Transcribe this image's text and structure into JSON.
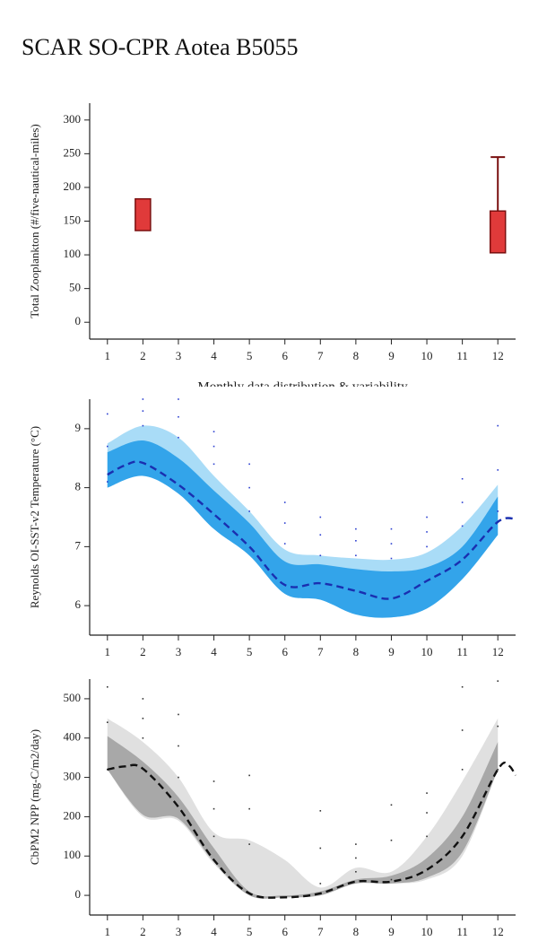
{
  "title": "SCAR SO-CPR Aotea B5055",
  "chart_data": [
    {
      "type": "box",
      "ylabel": "Total Zooplankton (#/five-nautical-miles)",
      "xlabel": "Monthly data distribution & variability",
      "xlim": [
        0.5,
        12.5
      ],
      "xticks": [
        1,
        2,
        3,
        4,
        5,
        6,
        7,
        8,
        9,
        10,
        11,
        12
      ],
      "ylim": [
        -25,
        325
      ],
      "yticks": [
        0,
        50,
        100,
        150,
        200,
        250,
        300
      ],
      "fill": "#e03a3a",
      "stroke": "#7a1010",
      "boxes": [
        {
          "x": 2,
          "q1": 136,
          "q3": 183
        },
        {
          "x": 12,
          "q1": 103,
          "q3": 165,
          "whisker_high": 245
        }
      ]
    },
    {
      "type": "line",
      "ylabel": "Reynolds OI-SST-v2 Temperature (°C)",
      "xlim": [
        0.5,
        12.5
      ],
      "xticks": [
        1,
        2,
        3,
        4,
        5,
        6,
        7,
        8,
        9,
        10,
        11,
        12
      ],
      "ylim": [
        5.5,
        9.5
      ],
      "yticks": [
        6,
        7,
        8,
        9
      ],
      "bands": [
        {
          "color": "#a9dcf7",
          "x": [
            1,
            2,
            3,
            4,
            5,
            6,
            7,
            8,
            9,
            10,
            11,
            12
          ],
          "upper": [
            8.75,
            9.05,
            8.85,
            8.2,
            7.6,
            6.95,
            6.85,
            6.8,
            6.78,
            6.9,
            7.35,
            8.05
          ],
          "lower": [
            8.0,
            8.2,
            7.9,
            7.3,
            6.85,
            6.2,
            6.1,
            5.85,
            5.8,
            5.95,
            6.45,
            7.2
          ]
        },
        {
          "color": "#33a4ea",
          "x": [
            1,
            2,
            3,
            4,
            5,
            6,
            7,
            8,
            9,
            10,
            11,
            12
          ],
          "upper": [
            8.6,
            8.8,
            8.5,
            7.95,
            7.4,
            6.75,
            6.7,
            6.62,
            6.58,
            6.65,
            7.0,
            7.85
          ],
          "lower": [
            8.0,
            8.2,
            7.9,
            7.3,
            6.85,
            6.2,
            6.1,
            5.85,
            5.8,
            5.95,
            6.45,
            7.2
          ]
        }
      ],
      "points": {
        "color": "#2b3fd0",
        "x": [
          1,
          1,
          1,
          2,
          2,
          2,
          3,
          3,
          3,
          4,
          4,
          4,
          5,
          5,
          5,
          6,
          6,
          6,
          7,
          7,
          7,
          8,
          8,
          8,
          9,
          9,
          9,
          10,
          10,
          10,
          11,
          11,
          11,
          12,
          12,
          12
        ],
        "y": [
          8.1,
          8.7,
          9.25,
          9.05,
          9.3,
          9.5,
          8.85,
          9.2,
          9.5,
          8.4,
          8.7,
          8.95,
          7.6,
          8.0,
          8.4,
          7.05,
          7.4,
          7.75,
          6.85,
          7.2,
          7.5,
          6.85,
          7.1,
          7.3,
          6.8,
          7.05,
          7.3,
          7.0,
          7.25,
          7.5,
          7.35,
          7.75,
          8.15,
          7.6,
          8.3,
          9.05
        ]
      },
      "series": [
        {
          "color": "#1a2fb0",
          "dashed": true,
          "x": [
            1,
            1.5,
            2,
            3,
            4,
            5,
            6,
            7,
            8,
            9,
            10,
            11,
            12,
            12.5
          ],
          "values": [
            8.22,
            8.38,
            8.42,
            8.05,
            7.55,
            7.0,
            6.35,
            6.38,
            6.25,
            6.12,
            6.42,
            6.78,
            7.42,
            7.47
          ]
        }
      ]
    },
    {
      "type": "line",
      "ylabel": "CbPM2 NPP (mg-C/m2/day)",
      "xlim": [
        0.5,
        12.5
      ],
      "xticks": [
        1,
        2,
        3,
        4,
        5,
        6,
        7,
        8,
        9,
        10,
        11,
        12
      ],
      "ylim": [
        -50,
        550
      ],
      "yticks": [
        0,
        100,
        200,
        300,
        400,
        500
      ],
      "bands": [
        {
          "color": "#e0e0e0",
          "x": [
            1,
            2,
            3,
            4,
            5,
            6,
            7,
            8,
            9,
            10,
            11,
            12
          ],
          "upper": [
            450,
            390,
            300,
            160,
            140,
            90,
            20,
            70,
            60,
            150,
            290,
            450
          ],
          "lower": [
            320,
            200,
            190,
            80,
            0,
            -5,
            0,
            30,
            30,
            40,
            100,
            320
          ]
        },
        {
          "color": "#a8a8a8",
          "x": [
            1,
            2,
            3,
            4,
            5,
            6,
            7,
            8,
            9,
            10,
            11,
            12
          ],
          "upper": [
            405,
            340,
            250,
            120,
            10,
            0,
            10,
            40,
            50,
            95,
            200,
            390
          ],
          "lower": [
            320,
            205,
            195,
            85,
            0,
            -5,
            0,
            30,
            30,
            45,
            110,
            320
          ]
        }
      ],
      "points": {
        "color": "#333333",
        "x": [
          1,
          1,
          1,
          2,
          2,
          2,
          3,
          3,
          3,
          4,
          4,
          4,
          5,
          5,
          5,
          7,
          7,
          7,
          8,
          8,
          8,
          9,
          9,
          9,
          10,
          10,
          10,
          11,
          11,
          11,
          12,
          12,
          12
        ],
        "y": [
          320,
          440,
          530,
          400,
          450,
          500,
          300,
          380,
          460,
          150,
          220,
          290,
          130,
          220,
          305,
          30,
          120,
          215,
          60,
          95,
          130,
          40,
          140,
          230,
          150,
          210,
          260,
          320,
          420,
          530,
          320,
          430,
          545
        ]
      },
      "series": [
        {
          "color": "#111111",
          "dashed": true,
          "x": [
            1,
            1.5,
            2,
            3,
            4,
            5,
            6,
            7,
            8,
            9,
            10,
            11,
            12,
            12.3,
            12.5
          ],
          "values": [
            320,
            328,
            322,
            225,
            90,
            5,
            -5,
            5,
            35,
            35,
            65,
            150,
            320,
            330,
            305
          ]
        }
      ]
    }
  ]
}
